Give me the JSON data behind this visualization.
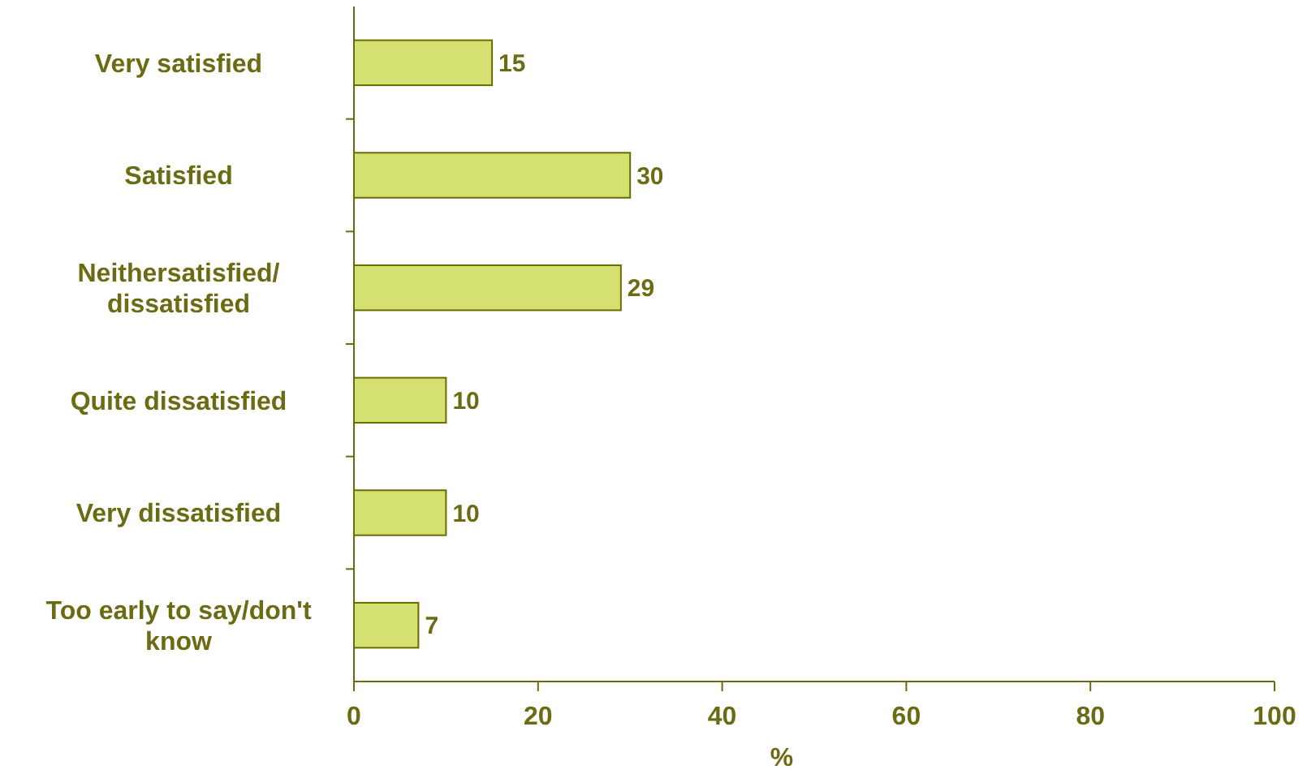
{
  "chart_data": {
    "type": "bar",
    "orientation": "horizontal",
    "xlabel": "%",
    "categories": [
      "Very satisfied",
      "Satisfied",
      "Neithersatisfied/ dissatisfied",
      "Quite dissatisfied",
      "Very dissatisfied",
      "Too early to say/don't know"
    ],
    "values": [
      15,
      30,
      29,
      10,
      10,
      7
    ],
    "color": "#d4e170",
    "xlim": [
      0,
      100
    ],
    "xticks": [
      0,
      20,
      40,
      60,
      80,
      100
    ],
    "data_labels": true
  }
}
